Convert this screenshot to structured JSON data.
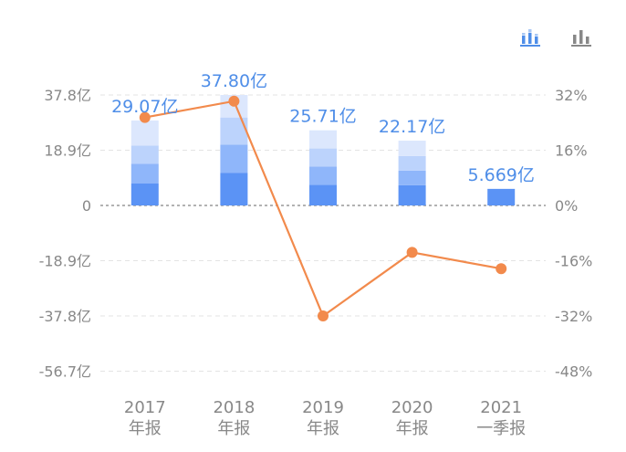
{
  "toolbar": {
    "icons": [
      {
        "name": "stacked-bar-chart-icon",
        "color": "#4f8ee8",
        "active": true
      },
      {
        "name": "bar-chart-icon",
        "color": "#888888",
        "active": false
      }
    ]
  },
  "colors": {
    "line": "#f28a4c",
    "value_label": "#4f8ee8",
    "axis_text": "#888888",
    "bar_segments": [
      "#5b93f5",
      "#8fb6fa",
      "#bcd3fc",
      "#dce7fd"
    ]
  },
  "chart_data": {
    "type": "bar",
    "categories": [
      [
        "2017",
        "年报"
      ],
      [
        "2018",
        "年报"
      ],
      [
        "2019",
        "年报"
      ],
      [
        "2020",
        "年报"
      ],
      [
        "2021",
        "一季报"
      ]
    ],
    "series": [
      {
        "type": "bar",
        "axis": "left",
        "values": [
          29.07,
          37.8,
          25.71,
          22.17,
          5.669
        ],
        "labels": [
          "29.07亿",
          "37.80亿",
          "25.71亿",
          "22.17亿",
          "5.669亿"
        ],
        "segments": [
          [
            7.5,
            6.8,
            6.2,
            8.57
          ],
          [
            11.2,
            9.6,
            9.3,
            7.7
          ],
          [
            7.1,
            6.2,
            6.2,
            6.21
          ],
          [
            6.9,
            5.0,
            5.0,
            5.27
          ],
          [
            5.669
          ]
        ]
      },
      {
        "type": "line",
        "axis": "right",
        "values": [
          25.5,
          30.2,
          -32.0,
          -13.6,
          -18.3
        ]
      }
    ],
    "y_left": {
      "ticks": [
        "37.8亿",
        "18.9亿",
        "0",
        "-18.9亿",
        "-37.8亿",
        "-56.7亿"
      ],
      "tick_values": [
        37.8,
        18.9,
        0,
        -18.9,
        -37.8,
        -56.7
      ]
    },
    "y_right": {
      "ticks": [
        "32%",
        "16%",
        "0%",
        "-16%",
        "-32%",
        "-48%"
      ],
      "tick_values": [
        32,
        16,
        0,
        -16,
        -32,
        -48
      ]
    },
    "ylim_left": [
      -56.7,
      37.8
    ],
    "ylim_right": [
      -48,
      32
    ],
    "grid": true
  }
}
